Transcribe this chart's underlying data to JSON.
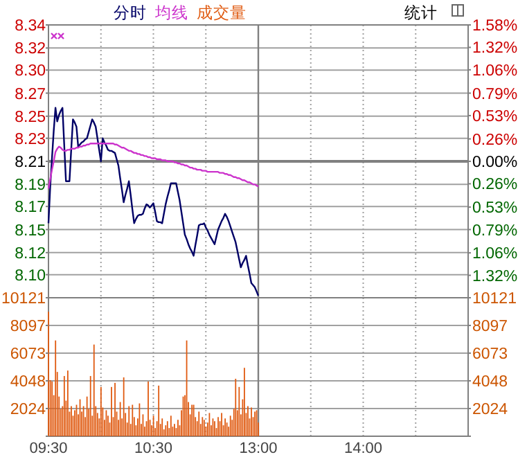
{
  "chart_data": [
    {
      "type": "line",
      "annotations": [
        "统计"
      ],
      "legend": "top",
      "grid": true,
      "tick_labels": "y",
      "categories": [
        "09:30",
        null,
        null,
        null,
        null,
        null,
        null,
        null,
        null,
        null,
        null,
        null,
        null,
        null,
        null,
        null,
        null,
        null,
        null,
        null,
        null,
        null,
        null,
        null,
        null,
        null,
        null,
        null,
        null,
        null,
        null,
        null,
        null,
        null,
        null,
        null,
        null,
        null,
        null,
        null,
        null,
        null,
        null,
        null,
        null,
        null,
        null,
        null,
        null,
        null,
        null,
        null,
        null,
        null,
        null,
        null,
        null,
        null,
        null,
        null,
        "10:30",
        null,
        null,
        null,
        null,
        null,
        null,
        null,
        null,
        null,
        null,
        null,
        null,
        null,
        null,
        null,
        null,
        null,
        null,
        null,
        null,
        null,
        null,
        null,
        null,
        null,
        null,
        null,
        null,
        null,
        null,
        null,
        null,
        null,
        null,
        null,
        null,
        null,
        null,
        null,
        null,
        null,
        null,
        null,
        null,
        null,
        null,
        null,
        null,
        null,
        null,
        null,
        null,
        null,
        null,
        null,
        null,
        null,
        null,
        null,
        "13:00",
        null,
        null,
        null,
        null,
        null,
        null,
        null,
        null,
        null,
        null,
        null,
        null,
        null,
        null,
        null,
        null,
        null,
        null,
        null,
        null,
        null,
        null,
        null,
        null,
        null,
        null,
        null,
        null,
        null,
        null,
        null,
        null,
        null,
        null,
        null,
        null,
        null,
        null,
        null,
        null,
        null,
        null,
        null,
        null,
        null,
        null,
        null,
        null,
        null,
        null,
        null,
        null,
        null,
        null,
        null,
        null,
        null,
        null,
        null,
        "14:00",
        null,
        null,
        null,
        null,
        null,
        null,
        null,
        null,
        null,
        null,
        null,
        null,
        null,
        null,
        null,
        null,
        null,
        null,
        null,
        null,
        null,
        null,
        null,
        null,
        null,
        null,
        null,
        null,
        null,
        null,
        null,
        null,
        null,
        null,
        null,
        null,
        null,
        null,
        null,
        null,
        null,
        null,
        null,
        null,
        null,
        null,
        null,
        null,
        null,
        null,
        null,
        null,
        null,
        null,
        null,
        null,
        null,
        null,
        null,
        null
      ],
      "ylim": [
        8.08,
        8.34
      ],
      "yticks": [
        {
          "value": 8.34,
          "label": "8.34"
        },
        {
          "value": 8.318,
          "label": "8.32"
        },
        {
          "value": 8.297,
          "label": "8.30"
        },
        {
          "value": 8.275,
          "label": "8.27"
        },
        {
          "value": 8.253,
          "label": "8.25"
        },
        {
          "value": 8.232,
          "label": "8.23"
        },
        {
          "value": 8.21,
          "label": "8.21"
        },
        {
          "value": 8.188,
          "label": "8.19"
        },
        {
          "value": 8.167,
          "label": "8.17"
        },
        {
          "value": 8.145,
          "label": "8.15"
        },
        {
          "value": 8.123,
          "label": "8.12"
        },
        {
          "value": 8.102,
          "label": "8.10"
        }
      ],
      "y2lim": [
        -1.58,
        1.58
      ],
      "y2ticks": [
        {
          "value": 1.58,
          "label": "1.58%"
        },
        {
          "value": 1.32,
          "label": "1.32%"
        },
        {
          "value": 1.06,
          "label": "1.06%"
        },
        {
          "value": 0.79,
          "label": "0.79%"
        },
        {
          "value": 0.53,
          "label": "0.53%"
        },
        {
          "value": 0.26,
          "label": "0.26%"
        },
        {
          "value": 0,
          "label": "0.00%"
        },
        {
          "value": -0.26,
          "label": "0.26%"
        },
        {
          "value": -0.53,
          "label": "0.53%"
        },
        {
          "value": -0.79,
          "label": "0.79%"
        },
        {
          "value": -1.06,
          "label": "1.06%"
        },
        {
          "value": -1.32,
          "label": "1.32%"
        }
      ],
      "ref_lines": [
        {
          "axis": "y",
          "value": 8.21,
          "color": "#808080"
        },
        {
          "axis": "x",
          "value": "13:00",
          "color": "#808080"
        }
      ],
      "series": [
        {
          "name": "分时",
          "color": "#000066",
          "values": [
            8.151,
            8.186,
            8.213,
            8.239,
            8.261,
            8.248,
            8.254,
            8.258,
            8.261,
            8.226,
            8.191,
            8.191,
            8.191,
            8.221,
            8.25,
            8.247,
            8.243,
            8.224,
            8.226,
            8.228,
            8.229,
            8.231,
            8.232,
            8.238,
            8.244,
            8.25,
            8.247,
            8.243,
            8.232,
            8.221,
            8.21,
            8.232,
            8.228,
            8.225,
            8.221,
            8.22,
            8.22,
            8.219,
            8.218,
            8.212,
            8.206,
            8.194,
            8.183,
            8.171,
            8.178,
            8.184,
            8.191,
            8.178,
            8.164,
            8.151,
            8.155,
            8.158,
            8.159,
            8.159,
            8.16,
            8.165,
            8.169,
            8.168,
            8.166,
            8.168,
            8.17,
            8.162,
            8.153,
            8.152,
            8.152,
            8.151,
            8.16,
            8.169,
            8.176,
            8.182,
            8.189,
            8.189,
            8.189,
            8.189,
            8.181,
            8.173,
            8.162,
            8.151,
            8.14,
            8.136,
            8.131,
            8.127,
            8.124,
            8.12,
            8.13,
            8.139,
            8.149,
            8.15,
            8.15,
            8.151,
            8.147,
            8.144,
            8.14,
            8.137,
            8.134,
            8.131,
            8.138,
            8.145,
            8.149,
            8.153,
            8.156,
            8.16,
            8.157,
            8.153,
            8.148,
            8.143,
            8.138,
            8.133,
            8.125,
            8.117,
            8.109,
            8.113,
            8.116,
            8.12,
            8.111,
            8.103,
            8.094,
            8.092,
            8.09,
            8.086,
            8.082,
            null,
            null,
            null,
            null,
            null,
            null,
            null,
            null,
            null,
            null,
            null,
            null,
            null,
            null,
            null,
            null,
            null,
            null,
            null,
            null,
            null,
            null,
            null,
            null,
            null,
            null,
            null,
            null,
            null,
            null,
            null,
            null,
            null,
            null,
            null,
            null,
            null,
            null,
            null,
            null,
            null,
            null,
            null,
            null,
            null,
            null,
            null,
            null,
            null,
            null,
            null,
            null,
            null,
            null,
            null,
            null,
            null,
            null,
            null,
            null,
            null,
            null,
            null,
            null,
            null,
            null,
            null,
            null,
            null,
            null,
            null,
            null,
            null,
            null,
            null,
            null,
            null,
            null,
            null,
            null,
            null,
            null,
            null,
            null,
            null,
            null,
            null,
            null,
            null,
            null,
            null,
            null,
            null,
            null,
            null,
            null,
            null,
            null,
            null,
            null,
            null,
            null,
            null,
            null,
            null,
            null,
            null,
            null,
            null,
            null,
            null,
            null,
            null,
            null,
            null,
            null,
            null,
            null,
            null,
            null
          ]
        },
        {
          "name": "均线",
          "color": "#cc33cc",
          "values": [
            8.184,
            8.193,
            8.202,
            8.21,
            8.219,
            8.222,
            8.224,
            8.223,
            8.221,
            8.22,
            8.22,
            8.221,
            8.221,
            8.222,
            8.222,
            8.222,
            8.223,
            8.223,
            8.224,
            8.224,
            8.225,
            8.225,
            8.226,
            8.226,
            8.227,
            8.227,
            8.227,
            8.227,
            8.227,
            8.227,
            8.227,
            8.227,
            8.227,
            8.227,
            8.227,
            8.227,
            8.227,
            8.227,
            8.226,
            8.226,
            8.225,
            8.224,
            8.223,
            8.223,
            8.222,
            8.221,
            8.22,
            8.22,
            8.219,
            8.218,
            8.218,
            8.217,
            8.217,
            8.216,
            8.216,
            8.215,
            8.215,
            8.214,
            8.214,
            8.213,
            8.213,
            8.213,
            8.212,
            8.212,
            8.212,
            8.211,
            8.211,
            8.211,
            8.21,
            8.21,
            8.21,
            8.21,
            8.209,
            8.209,
            8.208,
            8.208,
            8.207,
            8.207,
            8.206,
            8.206,
            8.205,
            8.204,
            8.204,
            8.203,
            8.203,
            8.202,
            8.202,
            8.202,
            8.201,
            8.201,
            8.201,
            8.2,
            8.2,
            8.2,
            8.2,
            8.2,
            8.2,
            8.2,
            8.199,
            8.199,
            8.199,
            8.198,
            8.198,
            8.197,
            8.197,
            8.196,
            8.195,
            8.195,
            8.194,
            8.194,
            8.193,
            8.192,
            8.192,
            8.191,
            8.19,
            8.19,
            8.189,
            8.188,
            8.188,
            8.187,
            8.186,
            null,
            null,
            null,
            null,
            null,
            null,
            null,
            null,
            null,
            null,
            null,
            null,
            null,
            null,
            null,
            null,
            null,
            null,
            null,
            null,
            null,
            null,
            null,
            null,
            null,
            null,
            null,
            null,
            null,
            null,
            null,
            null,
            null,
            null,
            null,
            null,
            null,
            null,
            null,
            null,
            null,
            null,
            null,
            null,
            null,
            null,
            null,
            null,
            null,
            null,
            null,
            null,
            null,
            null,
            null,
            null,
            null,
            null,
            null,
            null,
            null,
            null,
            null,
            null,
            null,
            null,
            null,
            null,
            null,
            null,
            null,
            null,
            null,
            null,
            null,
            null,
            null,
            null,
            null,
            null,
            null,
            null,
            null,
            null,
            null,
            null,
            null,
            null,
            null,
            null,
            null,
            null,
            null,
            null,
            null,
            null,
            null,
            null,
            null,
            null,
            null,
            null,
            null,
            null,
            null,
            null,
            null,
            null,
            null,
            null,
            null,
            null,
            null,
            null,
            null,
            null,
            null,
            null,
            null,
            null
          ]
        }
      ]
    },
    {
      "type": "bar",
      "grid": true,
      "categories": [
        "09:30",
        null,
        null,
        null,
        null,
        null,
        null,
        null,
        null,
        null,
        null,
        null,
        null,
        null,
        null,
        null,
        null,
        null,
        null,
        null,
        null,
        null,
        null,
        null,
        null,
        null,
        null,
        null,
        null,
        null,
        null,
        null,
        null,
        null,
        null,
        null,
        null,
        null,
        null,
        null,
        null,
        null,
        null,
        null,
        null,
        null,
        null,
        null,
        null,
        null,
        null,
        null,
        null,
        null,
        null,
        null,
        null,
        null,
        null,
        null,
        "10:30",
        null,
        null,
        null,
        null,
        null,
        null,
        null,
        null,
        null,
        null,
        null,
        null,
        null,
        null,
        null,
        null,
        null,
        null,
        null,
        null,
        null,
        null,
        null,
        null,
        null,
        null,
        null,
        null,
        null,
        null,
        null,
        null,
        null,
        null,
        null,
        null,
        null,
        null,
        null,
        null,
        null,
        null,
        null,
        null,
        null,
        null,
        null,
        null,
        null,
        null,
        null,
        null,
        null,
        null,
        null,
        null,
        null,
        null,
        null,
        "13:00",
        null,
        null,
        null,
        null,
        null,
        null,
        null,
        null,
        null,
        null,
        null,
        null,
        null,
        null,
        null,
        null,
        null,
        null,
        null,
        null,
        null,
        null,
        null,
        null,
        null,
        null,
        null,
        null,
        null,
        null,
        null,
        null,
        null,
        null,
        null,
        null,
        null,
        null,
        null,
        null,
        null,
        null,
        null,
        null,
        null,
        null,
        null,
        null,
        null,
        null,
        null,
        null,
        null,
        null,
        null,
        null,
        null,
        null,
        null,
        "14:00",
        null,
        null,
        null,
        null,
        null,
        null,
        null,
        null,
        null,
        null,
        null,
        null,
        null,
        null,
        null,
        null,
        null,
        null,
        null,
        null,
        null,
        null,
        null,
        null,
        null,
        null,
        null,
        null,
        null,
        null,
        null,
        null,
        null,
        null,
        null,
        null,
        null,
        null,
        null,
        null,
        null,
        null,
        null,
        null,
        null,
        null,
        null,
        null,
        null,
        null,
        null,
        null,
        null,
        null,
        null,
        null,
        null,
        null,
        null,
        null
      ],
      "ylim": [
        0,
        10121
      ],
      "yticks": [
        {
          "value": 0,
          "label": null
        },
        2024,
        4048,
        6073,
        8097,
        10121
      ],
      "y2lim": [
        0,
        10121
      ],
      "y2ticks": [
        {
          "value": 0,
          "label": null
        },
        2024,
        4048,
        6073,
        8097,
        10121
      ],
      "ref_lines": [
        {
          "axis": "x",
          "value": "13:00",
          "color": "#808080"
        }
      ],
      "series": [
        {
          "name": "成交量",
          "color": "#e05a10",
          "values": [
            9100,
            4100,
            4000,
            3000,
            7000,
            4700,
            2900,
            2000,
            2200,
            4400,
            2600,
            4800,
            1800,
            2200,
            1500,
            1900,
            2300,
            1600,
            2700,
            1800,
            2200,
            1400,
            2900,
            2000,
            4400,
            1500,
            6700,
            2200,
            1700,
            1300,
            3600,
            2100,
            1200,
            1900,
            1500,
            1000,
            3600,
            1400,
            3900,
            1800,
            1200,
            2500,
            1300,
            4300,
            1700,
            1000,
            2200,
            900,
            2300,
            1400,
            800,
            1300,
            2400,
            900,
            1600,
            700,
            1100,
            4000,
            1200,
            800,
            1500,
            600,
            1100,
            3700,
            900,
            1300,
            500,
            800,
            1100,
            600,
            1500,
            700,
            900,
            600,
            1200,
            800,
            1900,
            2900,
            3000,
            7000,
            2500,
            1600,
            2300,
            2300,
            1400,
            1100,
            1800,
            900,
            1400,
            1200,
            700,
            1000,
            1700,
            800,
            1300,
            1100,
            600,
            1400,
            1100,
            1700,
            800,
            1300,
            1000,
            700,
            1500,
            1200,
            2000,
            4200,
            1900,
            3600,
            1600,
            2700,
            5000,
            1700,
            2200,
            1300,
            2100,
            1400,
            1800,
            1900,
            1000,
            null,
            null,
            null,
            null,
            null,
            null,
            null,
            null,
            null,
            null,
            null,
            null,
            null,
            null,
            null,
            null,
            null,
            null,
            null,
            null,
            null,
            null,
            null,
            null,
            null,
            null,
            null,
            null,
            null,
            null,
            null,
            null,
            null,
            null,
            null,
            null,
            null,
            null,
            null,
            null,
            null,
            null,
            null,
            null,
            null,
            null,
            null,
            null,
            null,
            null,
            null,
            null,
            null,
            null,
            null,
            null,
            null,
            null,
            null,
            null,
            null,
            null,
            null,
            null,
            null,
            null,
            null,
            null,
            null,
            null,
            null,
            null,
            null,
            null,
            null,
            null,
            null,
            null,
            null,
            null,
            null,
            null,
            null,
            null,
            null,
            null,
            null,
            null,
            null,
            null,
            null,
            null,
            null,
            null,
            null,
            null,
            null,
            null,
            null,
            null,
            null,
            null,
            null,
            null,
            null,
            null,
            null,
            null,
            null,
            null,
            null,
            null,
            null,
            null,
            null,
            null,
            null,
            null,
            null,
            null
          ]
        }
      ]
    }
  ]
}
